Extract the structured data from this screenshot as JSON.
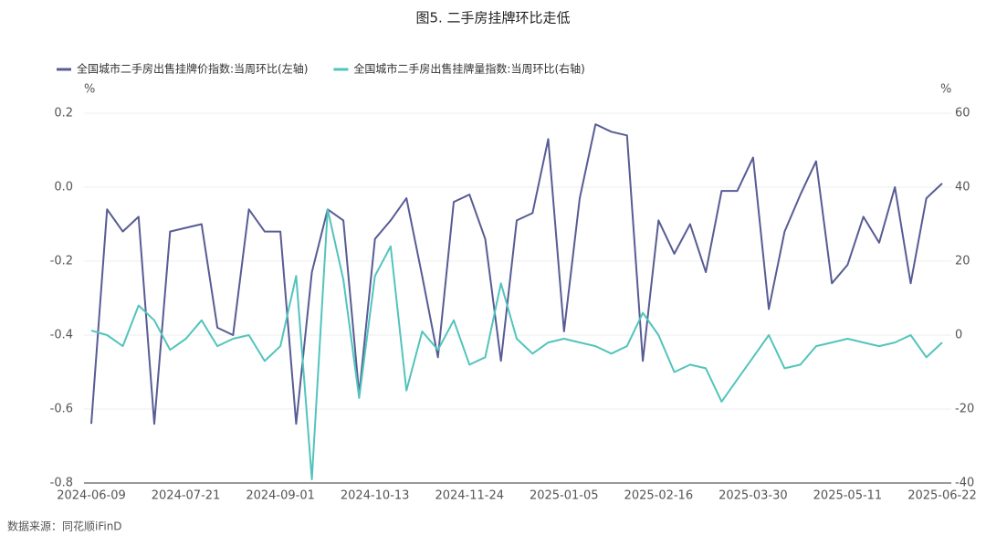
{
  "chart_data": {
    "type": "line",
    "title": "图5.  二手房挂牌环比走低",
    "y_unit": "%",
    "y2_unit": "%",
    "source": "数据来源：同花顺iFinD",
    "categories": [
      "2024-06-09",
      null,
      null,
      null,
      null,
      null,
      "2024-07-21",
      null,
      null,
      null,
      null,
      null,
      "2024-09-01",
      null,
      null,
      null,
      null,
      null,
      "2024-10-13",
      null,
      null,
      null,
      null,
      null,
      "2024-11-24",
      null,
      null,
      null,
      null,
      null,
      "2025-01-05",
      null,
      null,
      null,
      null,
      null,
      "2025-02-16",
      null,
      null,
      null,
      null,
      null,
      "2025-03-30",
      null,
      null,
      null,
      null,
      null,
      "2025-05-11",
      null,
      null,
      null,
      null,
      null,
      "2025-06-22"
    ],
    "series": [
      {
        "name": "全国城市二手房出售挂牌价指数:当周环比(左轴)",
        "color": "#575c94",
        "axis": "y",
        "values": [
          -0.64,
          -0.06,
          -0.12,
          -0.08,
          -0.64,
          -0.12,
          -0.11,
          -0.1,
          -0.38,
          -0.4,
          -0.06,
          -0.12,
          -0.12,
          -0.64,
          -0.23,
          -0.06,
          -0.09,
          -0.56,
          -0.14,
          -0.09,
          -0.03,
          -0.24,
          -0.46,
          -0.04,
          -0.02,
          -0.14,
          -0.47,
          -0.09,
          -0.07,
          0.13,
          -0.39,
          -0.03,
          0.17,
          0.15,
          0.14,
          -0.47,
          -0.09,
          -0.18,
          -0.1,
          -0.23,
          -0.01,
          -0.01,
          0.08,
          -0.33,
          -0.12,
          -0.02,
          0.07,
          -0.26,
          -0.21,
          -0.08,
          -0.15,
          0.0,
          -0.26,
          -0.03,
          0.01
        ]
      },
      {
        "name": "全国城市二手房出售挂牌量指数:当周环比(右轴)",
        "color": "#52c4bc",
        "axis": "y2",
        "values": [
          1.2,
          0,
          -3,
          8,
          4,
          -4,
          -1,
          4,
          -3,
          -1,
          0,
          -7,
          -3,
          16,
          -39,
          34,
          15,
          -17,
          16,
          24,
          -15,
          1,
          -4,
          4,
          -8,
          -6,
          14,
          -1,
          -5,
          -2,
          -1,
          -2,
          -3,
          -5,
          -3,
          6,
          0,
          -10,
          -8,
          -9,
          -18,
          -12,
          -6,
          0,
          -9,
          -8,
          -3,
          -2,
          -1,
          -2,
          -3,
          -2,
          0,
          -6,
          -2
        ]
      }
    ],
    "ylim": [
      -0.8,
      0.2
    ],
    "yticks": [
      -0.8,
      -0.6,
      -0.4,
      -0.2,
      {
        "value": 0,
        "label": "0.0"
      },
      0.2
    ],
    "y2lim": [
      -40,
      60
    ],
    "y2ticks": [
      -40,
      -20,
      0,
      20,
      40,
      60
    ],
    "grid": true
  }
}
